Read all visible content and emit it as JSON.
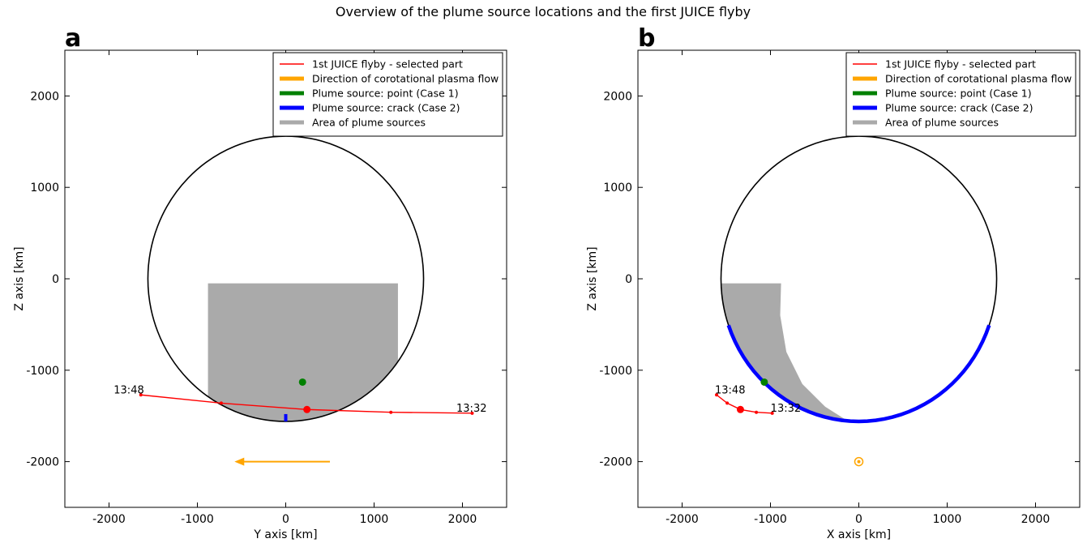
{
  "suptitle": "Overview of the plume source locations and the first JUICE flyby",
  "legend": [
    {
      "label": "1st JUICE flyby - selected part",
      "color": "#ff0000",
      "style": "thin"
    },
    {
      "label": "Direction of corotational plasma flow",
      "color": "#ffa500",
      "style": "thick"
    },
    {
      "label": "Plume source: point (Case 1)",
      "color": "#008000",
      "style": "thick"
    },
    {
      "label": "Plume source: crack (Case 2)",
      "color": "#0000ff",
      "style": "thick"
    },
    {
      "label": "Area of plume sources",
      "color": "#aaaaaa",
      "style": "thick"
    }
  ],
  "colors": {
    "flyby": "#ff0000",
    "flow": "#ffa500",
    "point_source": "#008000",
    "crack_source": "#0000ff",
    "area": "#aaaaaa",
    "moon_outline": "#000000"
  },
  "chart_data": [
    {
      "type": "line",
      "panel": "a",
      "xlabel": "Y axis [km]",
      "ylabel": "Z axis [km]",
      "xlim": [
        -2500,
        2500
      ],
      "ylim": [
        -2500,
        2500
      ],
      "xticks": [
        -2000,
        -1000,
        0,
        1000,
        2000
      ],
      "yticks": [
        -2000,
        -1000,
        0,
        1000,
        2000
      ],
      "grid": false,
      "legend_position": "upper right",
      "moon_radius": 1560,
      "flyby": {
        "x": [
          2110,
          1190,
          240,
          -730,
          -1640
        ],
        "y": [
          -1470,
          -1460,
          -1430,
          -1360,
          -1270
        ],
        "highlight_index": 2,
        "labels": [
          {
            "text": "13:32",
            "at_index": 0
          },
          {
            "text": "13:48",
            "at_index": 4
          }
        ]
      },
      "flow_arrow": {
        "from": [
          500,
          -2000
        ],
        "to": [
          -580,
          -2000
        ]
      },
      "point_source": {
        "x": 190,
        "y": -1130
      },
      "crack_source": {
        "x": [
          0,
          0
        ],
        "y": [
          -1480,
          -1560
        ]
      },
      "plume_area": {
        "x_min": -880,
        "x_max": 1270,
        "z_top": -50,
        "z_bottom": -1560
      }
    },
    {
      "type": "line",
      "panel": "b",
      "xlabel": "X axis [km]",
      "ylabel": "Z axis [km]",
      "xlim": [
        -2500,
        2500
      ],
      "ylim": [
        -2500,
        2500
      ],
      "xticks": [
        -2000,
        -1000,
        0,
        1000,
        2000
      ],
      "yticks": [
        -2000,
        -1000,
        0,
        1000,
        2000
      ],
      "grid": false,
      "legend_position": "upper right",
      "moon_radius": 1560,
      "flyby": {
        "x": [
          -980,
          -1160,
          -1340,
          -1490,
          -1610
        ],
        "y": [
          -1470,
          -1460,
          -1430,
          -1360,
          -1270
        ],
        "highlight_index": 2,
        "labels": [
          {
            "text": "13:32",
            "at_index": 0
          },
          {
            "text": "13:48",
            "at_index": 4
          }
        ]
      },
      "flow_marker": {
        "x": 0,
        "y": -2000
      },
      "point_source": {
        "x": -1070,
        "y": -1130
      },
      "crack_source": {
        "angle_from_deg": 199,
        "angle_to_deg": 341
      },
      "plume_area": {
        "x_inner": -880,
        "z_top": -50
      }
    }
  ]
}
